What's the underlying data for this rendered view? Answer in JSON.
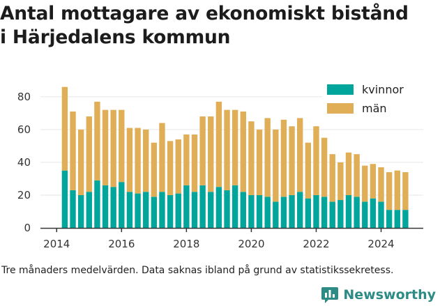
{
  "title_lines": [
    "Antal mottagare av ekonomiskt bistånd",
    "i Härjedalens kommun"
  ],
  "caption": "Tre månaders medelvärden. Data saknas ibland på grund av statistikssekretess.",
  "brand": {
    "name": "Newsworthy",
    "icon": "newsworthy-logo-icon"
  },
  "colors": {
    "kvinnor": "#00a69c",
    "man": "#dfae57",
    "axis": "#333333",
    "grid": "#e6e6e6",
    "brand": "#2d8b86"
  },
  "chart_data": {
    "type": "bar",
    "stacked": true,
    "x_start": "2014-04",
    "x_step_months": 3,
    "xlim": [
      2013.5,
      2025.3
    ],
    "ylim": [
      0,
      88
    ],
    "x_ticks": [
      "2014",
      "2016",
      "2018",
      "2020",
      "2022",
      "2024"
    ],
    "y_ticks": [
      "0",
      "20",
      "40",
      "60",
      "80"
    ],
    "grid": true,
    "legend_position": "top-right",
    "series": [
      {
        "name": "kvinnor",
        "color": "#00a69c",
        "values": [
          35,
          23,
          20,
          22,
          29,
          26,
          25,
          28,
          22,
          21,
          22,
          19,
          22,
          20,
          21,
          26,
          22,
          26,
          22,
          25,
          23,
          26,
          22,
          20,
          20,
          19,
          16,
          19,
          20,
          22,
          18,
          20,
          19,
          16,
          17,
          20,
          19,
          16,
          18,
          16,
          11,
          11,
          11
        ]
      },
      {
        "name": "män",
        "color": "#dfae57",
        "values": [
          51,
          48,
          40,
          46,
          48,
          46,
          47,
          44,
          39,
          40,
          38,
          33,
          42,
          33,
          33,
          31,
          35,
          42,
          46,
          52,
          49,
          46,
          49,
          45,
          40,
          48,
          44,
          47,
          42,
          45,
          34,
          42,
          36,
          29,
          23,
          26,
          26,
          22,
          21,
          21,
          23,
          24,
          23
        ]
      }
    ]
  }
}
